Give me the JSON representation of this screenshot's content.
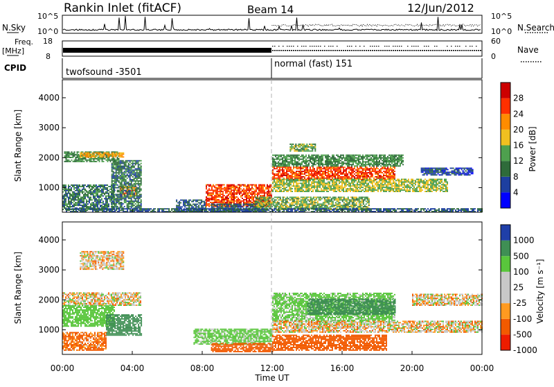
{
  "header": {
    "station": "Rankin Inlet (fitACF)",
    "beam": "Beam 14",
    "date": "12/Jun/2012"
  },
  "top_panel": {
    "left_label": "N.Sky",
    "right_label": "N.Search",
    "left_ticks": [
      "10^5",
      "10^0"
    ],
    "right_ticks": [
      "10^5",
      "10^0"
    ]
  },
  "freq_panel": {
    "left_label_line1": "Freq.",
    "left_label_line2": "[MHz]",
    "right_label": "Nave",
    "left_ticks": [
      "18",
      "8"
    ],
    "right_ticks": [
      "60",
      "0"
    ]
  },
  "cpid": {
    "label": "CPID",
    "segments": [
      {
        "name": "twofsound -3501",
        "start_hour": 0,
        "end_hour": 12
      },
      {
        "name": "normal (fast) 151",
        "start_hour": 12,
        "end_hour": 24
      }
    ]
  },
  "x_axis": {
    "label": "Time UT",
    "ticks": [
      "00:00",
      "04:00",
      "08:00",
      "12:00",
      "16:00",
      "20:00",
      "00:00"
    ]
  },
  "colors": {
    "power": [
      "#0000ff",
      "#1d3fa0",
      "#2e6b3a",
      "#4ea04e",
      "#f0c020",
      "#ff8c00",
      "#ff3000",
      "#cc0000"
    ],
    "velocity": [
      "#ee1c00",
      "#f25a00",
      "#ff9a20",
      "#c8c8c8",
      "#c8c8c8",
      "#59c63c",
      "#3f8f54",
      "#1f3fa8"
    ]
  },
  "chart_data": [
    {
      "type": "heatmap",
      "title": "",
      "ylabel": "Slant Range [km]",
      "xlabel": "",
      "xlim_hours": [
        0,
        24
      ],
      "ylim": [
        180,
        4600
      ],
      "yticks": [
        1000,
        2000,
        3000,
        4000
      ],
      "colorbar": {
        "label": "Power [dB]",
        "ticks": [
          "4",
          "8",
          "12",
          "16",
          "20",
          "24",
          "28"
        ],
        "range": [
          0,
          32
        ]
      },
      "regions": [
        {
          "t0": 0.0,
          "t1": 3.0,
          "r0": 250,
          "r1": 1100,
          "value": 10
        },
        {
          "t0": 0.1,
          "t1": 3.2,
          "r0": 1850,
          "r1": 2200,
          "value": 12
        },
        {
          "t0": 1.0,
          "t1": 3.5,
          "r0": 2000,
          "r1": 2150,
          "value": 20
        },
        {
          "t0": 3.3,
          "t1": 4.2,
          "r0": 700,
          "r1": 1050,
          "value": 22
        },
        {
          "t0": 2.8,
          "t1": 4.5,
          "r0": 300,
          "r1": 1900,
          "value": 10
        },
        {
          "t0": 6.5,
          "t1": 8.2,
          "r0": 200,
          "r1": 600,
          "value": 8
        },
        {
          "t0": 8.2,
          "t1": 12.0,
          "r0": 350,
          "r1": 1100,
          "value": 26
        },
        {
          "t0": 8.5,
          "t1": 11.5,
          "r0": 200,
          "r1": 450,
          "value": 8
        },
        {
          "t0": 11.0,
          "t1": 17.5,
          "r0": 250,
          "r1": 700,
          "value": 14
        },
        {
          "t0": 12.0,
          "t1": 19.0,
          "r0": 1250,
          "r1": 1700,
          "value": 26
        },
        {
          "t0": 12.0,
          "t1": 19.5,
          "r0": 1700,
          "r1": 2100,
          "value": 12
        },
        {
          "t0": 12.0,
          "t1": 22.0,
          "r0": 850,
          "r1": 1300,
          "value": 16
        },
        {
          "t0": 13.0,
          "t1": 14.5,
          "r0": 2200,
          "r1": 2450,
          "value": 14
        },
        {
          "t0": 20.5,
          "t1": 23.5,
          "r0": 1400,
          "r1": 1650,
          "value": 6
        },
        {
          "t0": 0.2,
          "t1": 24.0,
          "r0": 180,
          "r1": 280,
          "value": 8
        }
      ]
    },
    {
      "type": "heatmap",
      "title": "",
      "ylabel": "Slant Range [km]",
      "xlabel": "Time UT",
      "xlim_hours": [
        0,
        24
      ],
      "ylim": [
        180,
        4600
      ],
      "yticks": [
        1000,
        2000,
        3000,
        4000
      ],
      "colorbar": {
        "label": "Velocity [m s⁻¹]",
        "ticks": [
          "1000",
          "500",
          "100",
          "25",
          "-25",
          "-100",
          "-500",
          "-1000"
        ],
        "range": [
          -1000,
          1000
        ]
      },
      "regions": [
        {
          "t0": 0.0,
          "t1": 4.5,
          "r0": 1800,
          "r1": 2250,
          "value": 0
        },
        {
          "t0": 0.0,
          "t1": 3.0,
          "r0": 1100,
          "r1": 1800,
          "value": 300
        },
        {
          "t0": 2.5,
          "t1": 4.5,
          "r0": 800,
          "r1": 1500,
          "value": 800
        },
        {
          "t0": 0.0,
          "t1": 2.5,
          "r0": 300,
          "r1": 900,
          "value": -150
        },
        {
          "t0": 1.0,
          "t1": 3.5,
          "r0": 3000,
          "r1": 3600,
          "value": 0
        },
        {
          "t0": 7.5,
          "t1": 12.0,
          "r0": 500,
          "r1": 1000,
          "value": 200
        },
        {
          "t0": 8.5,
          "t1": 12.0,
          "r0": 250,
          "r1": 550,
          "value": -300
        },
        {
          "t0": 12.0,
          "t1": 19.0,
          "r0": 1250,
          "r1": 2200,
          "value": 200
        },
        {
          "t0": 14.0,
          "t1": 19.0,
          "r0": 1500,
          "r1": 2000,
          "value": 700
        },
        {
          "t0": 12.0,
          "t1": 24.0,
          "r0": 900,
          "r1": 1300,
          "value": 0
        },
        {
          "t0": 12.0,
          "t1": 18.5,
          "r0": 300,
          "r1": 800,
          "value": -300
        },
        {
          "t0": 20.0,
          "t1": 24.0,
          "r0": 1800,
          "r1": 2200,
          "value": 0
        }
      ]
    }
  ]
}
